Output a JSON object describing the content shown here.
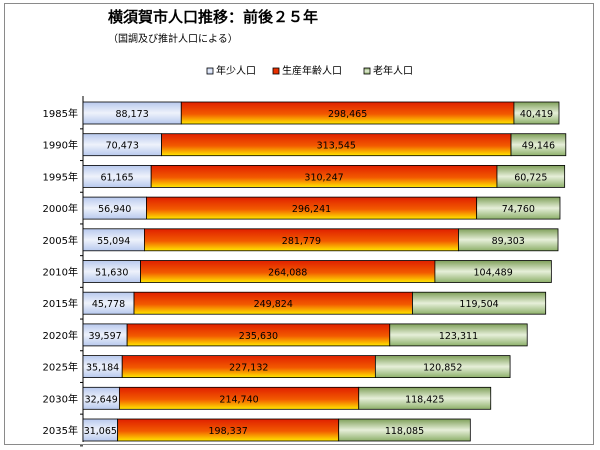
{
  "chart_data": {
    "type": "bar",
    "orientation": "horizontal",
    "stacked": true,
    "title": "横須賀市人口推移：前後２５年",
    "subtitle": "（国調及び推計人口による）",
    "categories": [
      "1985年",
      "1990年",
      "1995年",
      "2000年",
      "2005年",
      "2010年",
      "2015年",
      "2020年",
      "2025年",
      "2030年",
      "2035年"
    ],
    "series": [
      {
        "name": "年少人口",
        "color": "#c9d7f2",
        "values": [
          88173,
          70473,
          61165,
          56940,
          55094,
          51630,
          45778,
          39597,
          35184,
          32649,
          31065
        ],
        "labels": [
          "88,173",
          "70,473",
          "61,165",
          "56,940",
          "55,094",
          "51,630",
          "45,778",
          "39,597",
          "35,184",
          "32,649",
          "31,065"
        ]
      },
      {
        "name": "生産年齢人口",
        "color": "#e83000",
        "values": [
          298465,
          313545,
          310247,
          296241,
          281779,
          264088,
          249824,
          235630,
          227132,
          214740,
          198337
        ],
        "labels": [
          "298,465",
          "313,545",
          "310,247",
          "296,241",
          "281,779",
          "264,088",
          "249,824",
          "235,630",
          "227,132",
          "214,740",
          "198,337"
        ]
      },
      {
        "name": "老年人口",
        "color": "#a8c488",
        "values": [
          40419,
          49146,
          60725,
          74760,
          89303,
          104489,
          119504,
          123311,
          120852,
          118425,
          118085
        ],
        "labels": [
          "40,419",
          "49,146",
          "60,725",
          "74,760",
          "89,303",
          "104,489",
          "119,504",
          "123,311",
          "120,852",
          "118,425",
          "118,085"
        ]
      }
    ],
    "legend_position": "top",
    "grid": false
  }
}
